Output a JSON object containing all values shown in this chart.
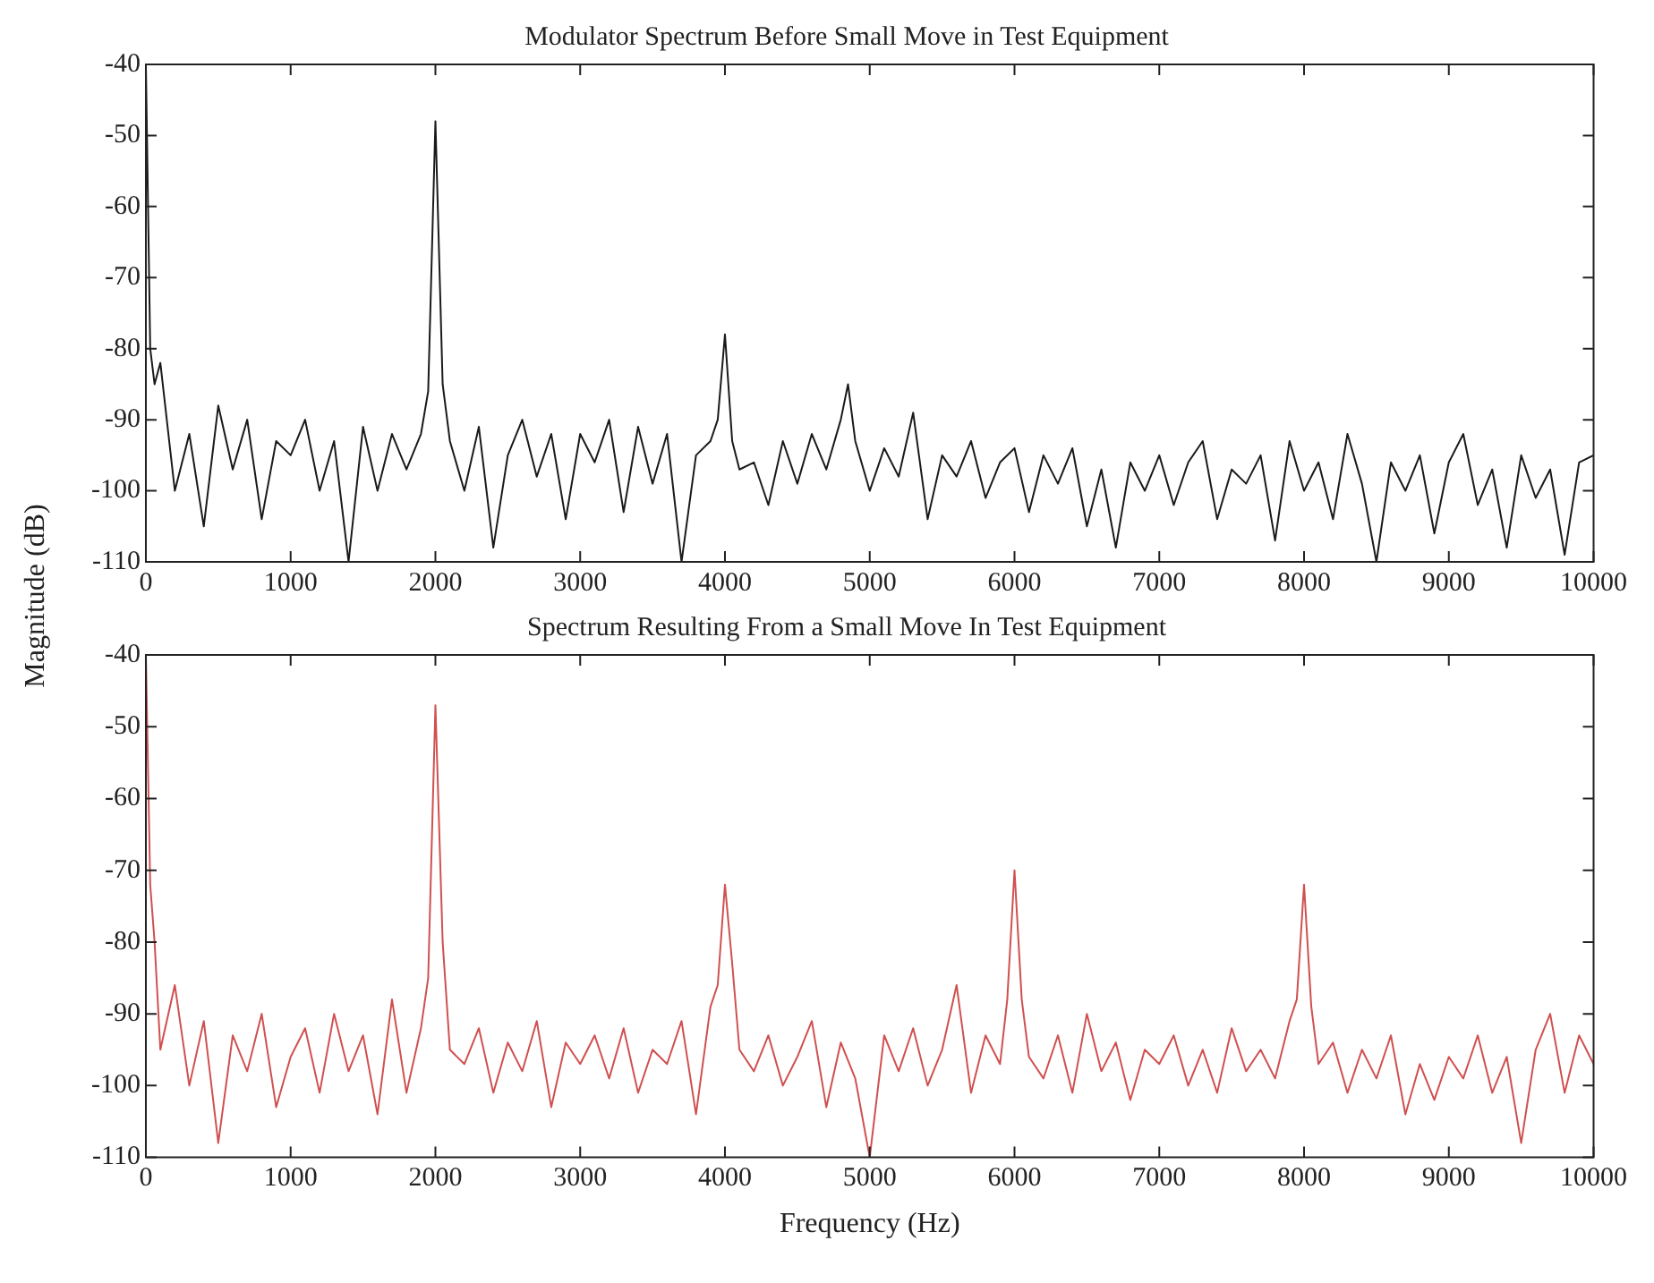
{
  "chart_data": [
    {
      "type": "line",
      "title": "Modulator Spectrum Before Small Move in Test Equipment",
      "ylabel": "Magnitude (dB)",
      "grid": false,
      "legend": false,
      "marker": "none",
      "line_style": "solid",
      "xlim": [
        0,
        10000
      ],
      "xticks": [
        0,
        1000,
        2000,
        3000,
        4000,
        5000,
        6000,
        7000,
        8000,
        9000,
        10000
      ],
      "ylim": [
        -110,
        -40
      ],
      "yticks": [
        -110,
        -100,
        -90,
        -80,
        -70,
        -60,
        -50,
        -40
      ],
      "series": [
        {
          "color": "#1a1a1a",
          "x": [
            0,
            30,
            60,
            100,
            200,
            300,
            400,
            500,
            600,
            700,
            800,
            900,
            1000,
            1100,
            1200,
            1300,
            1400,
            1500,
            1600,
            1700,
            1800,
            1900,
            1950,
            2000,
            2050,
            2100,
            2200,
            2300,
            2400,
            2500,
            2600,
            2700,
            2800,
            2900,
            3000,
            3100,
            3200,
            3300,
            3400,
            3500,
            3600,
            3700,
            3800,
            3900,
            3950,
            4000,
            4050,
            4100,
            4200,
            4300,
            4400,
            4500,
            4600,
            4700,
            4800,
            4850,
            4900,
            5000,
            5100,
            5200,
            5300,
            5400,
            5500,
            5600,
            5700,
            5800,
            5900,
            6000,
            6100,
            6200,
            6300,
            6400,
            6500,
            6600,
            6700,
            6800,
            6900,
            7000,
            7100,
            7200,
            7300,
            7400,
            7500,
            7600,
            7700,
            7800,
            7900,
            8000,
            8100,
            8200,
            8300,
            8400,
            8500,
            8600,
            8700,
            8800,
            8900,
            9000,
            9100,
            9200,
            9300,
            9400,
            9500,
            9600,
            9700,
            9800,
            9900,
            10000
          ],
          "values": [
            -40,
            -80,
            -85,
            -82,
            -100,
            -92,
            -105,
            -88,
            -97,
            -90,
            -104,
            -93,
            -95,
            -90,
            -100,
            -93,
            -110,
            -91,
            -100,
            -92,
            -97,
            -92,
            -86,
            -48,
            -85,
            -93,
            -100,
            -91,
            -108,
            -95,
            -90,
            -98,
            -92,
            -104,
            -92,
            -96,
            -90,
            -103,
            -91,
            -99,
            -92,
            -110,
            -95,
            -93,
            -90,
            -78,
            -93,
            -97,
            -96,
            -102,
            -93,
            -99,
            -92,
            -97,
            -90,
            -85,
            -93,
            -100,
            -94,
            -98,
            -89,
            -104,
            -95,
            -98,
            -93,
            -101,
            -96,
            -94,
            -103,
            -95,
            -99,
            -94,
            -105,
            -97,
            -108,
            -96,
            -100,
            -95,
            -102,
            -96,
            -93,
            -104,
            -97,
            -99,
            -95,
            -107,
            -93,
            -100,
            -96,
            -104,
            -92,
            -99,
            -110,
            -96,
            -100,
            -95,
            -106,
            -96,
            -92,
            -102,
            -97,
            -108,
            -95,
            -101,
            -97,
            -109,
            -96,
            -95
          ]
        }
      ]
    },
    {
      "type": "line",
      "title": "Spectrum Resulting From a Small Move In Test Equipment",
      "xlabel": "Frequency (Hz)",
      "grid": false,
      "legend": false,
      "marker": "none",
      "line_style": "solid",
      "xlim": [
        0,
        10000
      ],
      "xticks": [
        0,
        1000,
        2000,
        3000,
        4000,
        5000,
        6000,
        7000,
        8000,
        9000,
        10000
      ],
      "ylim": [
        -110,
        -40
      ],
      "yticks": [
        -110,
        -100,
        -90,
        -80,
        -70,
        -60,
        -50,
        -40
      ],
      "series": [
        {
          "color": "#d05050",
          "x": [
            0,
            30,
            60,
            100,
            200,
            300,
            400,
            500,
            600,
            700,
            800,
            900,
            1000,
            1100,
            1200,
            1300,
            1400,
            1500,
            1600,
            1700,
            1800,
            1900,
            1950,
            2000,
            2050,
            2100,
            2200,
            2300,
            2400,
            2500,
            2600,
            2700,
            2800,
            2900,
            3000,
            3100,
            3200,
            3300,
            3400,
            3500,
            3600,
            3700,
            3800,
            3900,
            3950,
            4000,
            4050,
            4100,
            4200,
            4300,
            4400,
            4500,
            4600,
            4700,
            4800,
            4900,
            5000,
            5100,
            5200,
            5300,
            5400,
            5500,
            5600,
            5700,
            5800,
            5900,
            5950,
            6000,
            6050,
            6100,
            6200,
            6300,
            6400,
            6500,
            6600,
            6700,
            6800,
            6900,
            7000,
            7100,
            7200,
            7300,
            7400,
            7500,
            7600,
            7700,
            7800,
            7900,
            7950,
            8000,
            8050,
            8100,
            8200,
            8300,
            8400,
            8500,
            8600,
            8700,
            8800,
            8900,
            9000,
            9100,
            9200,
            9300,
            9400,
            9500,
            9600,
            9700,
            9800,
            9900,
            10000
          ],
          "values": [
            -40,
            -72,
            -80,
            -95,
            -86,
            -100,
            -91,
            -108,
            -93,
            -98,
            -90,
            -103,
            -96,
            -92,
            -101,
            -90,
            -98,
            -93,
            -104,
            -88,
            -101,
            -92,
            -85,
            -47,
            -80,
            -95,
            -97,
            -92,
            -101,
            -94,
            -98,
            -91,
            -103,
            -94,
            -97,
            -93,
            -99,
            -92,
            -101,
            -95,
            -97,
            -91,
            -104,
            -89,
            -86,
            -72,
            -83,
            -95,
            -98,
            -93,
            -100,
            -96,
            -91,
            -103,
            -94,
            -99,
            -110,
            -93,
            -98,
            -92,
            -100,
            -95,
            -86,
            -101,
            -93,
            -97,
            -88,
            -70,
            -88,
            -96,
            -99,
            -93,
            -101,
            -90,
            -98,
            -94,
            -102,
            -95,
            -97,
            -93,
            -100,
            -95,
            -101,
            -92,
            -98,
            -95,
            -99,
            -91,
            -88,
            -72,
            -89,
            -97,
            -94,
            -101,
            -95,
            -99,
            -93,
            -104,
            -97,
            -102,
            -96,
            -99,
            -93,
            -101,
            -96,
            -108,
            -95,
            -90,
            -101,
            -93,
            -97
          ]
        }
      ]
    }
  ]
}
